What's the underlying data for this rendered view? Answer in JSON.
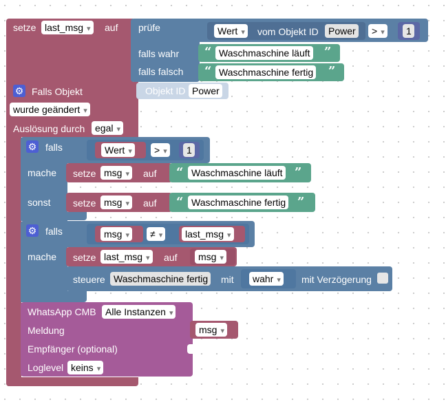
{
  "block1": {
    "set_label": "setze",
    "var": "last_msg",
    "on_label": "auf",
    "check_label": "prüfe",
    "true_label": "falls wahr",
    "false_label": "falls falsch",
    "cond": {
      "field": "Wert",
      "from_object_label": "vom Objekt ID",
      "object": "Power",
      "op": ">",
      "value": "1"
    },
    "true_text": "Waschmaschine läuft",
    "false_text": "Waschmaschine fertig"
  },
  "trigger": {
    "title": "Falls Objekt",
    "object_label": "Objekt ID",
    "object": "Power",
    "changed": "wurde geändert",
    "trigger_label": "Auslösung durch",
    "trigger_value": "egal"
  },
  "if1": {
    "if_label": "falls",
    "do_label": "mache",
    "else_label": "sonst",
    "cond_field": "Wert",
    "cond_op": ">",
    "cond_value": "1",
    "do_set": "setze",
    "do_var": "msg",
    "do_on": "auf",
    "do_text": "Waschmaschine läuft",
    "else_set": "setze",
    "else_var": "msg",
    "else_on": "auf",
    "else_text": "Waschmaschine fertig"
  },
  "if2": {
    "if_label": "falls",
    "do_label": "mache",
    "cond_left": "msg",
    "cond_op": "≠",
    "cond_right": "last_msg",
    "set_label": "setze",
    "set_var": "last_msg",
    "set_on": "auf",
    "set_value": "msg",
    "control_label": "steuere",
    "control_object": "Waschmaschine fertig",
    "control_with": "mit",
    "control_value": "wahr",
    "control_delay": "mit Verzögerung"
  },
  "whatsapp": {
    "title": "WhatsApp CMB",
    "instance": "Alle Instanzen",
    "message_label": "Meldung",
    "message_value": "msg",
    "recipient_label": "Empfänger (optional)",
    "loglevel_label": "Loglevel",
    "loglevel_value": "keins"
  },
  "colors": {
    "variable": "#a5586f",
    "logic": "#5b80a5",
    "text": "#5ba58c",
    "whatsapp": "#a55b99"
  }
}
